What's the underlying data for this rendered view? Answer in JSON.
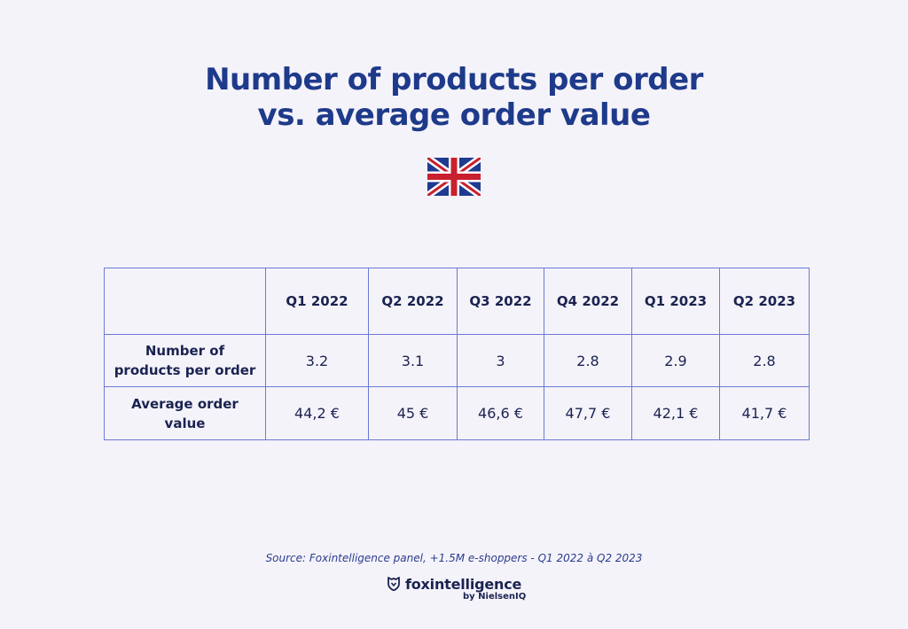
{
  "title": {
    "line1": "Number of products per order",
    "line2": "vs. average order value"
  },
  "flag": {
    "icon": "uk-flag-icon",
    "colors": {
      "blue": "#1f3b8f",
      "red": "#c8202f",
      "white": "#ffffff"
    }
  },
  "chart_data": {
    "type": "table",
    "columns": [
      "",
      "Q1 2022",
      "Q2 2022",
      "Q3 2022",
      "Q4 2022",
      "Q1 2023",
      "Q2 2023"
    ],
    "rows": [
      {
        "label": "Number of products per order",
        "values": [
          "3.2",
          "3.1",
          "3",
          "2.8",
          "2.9",
          "2.8"
        ]
      },
      {
        "label": "Average order value",
        "values": [
          "44,2 €",
          "45 €",
          "46,6 €",
          "47,7 €",
          "42,1 €",
          "41,7 €"
        ]
      }
    ]
  },
  "footer": {
    "source": "Source: Foxintelligence panel, +1.5M e-shoppers - Q1 2022 à Q2 2023",
    "brand": "foxintelligence",
    "brand_sub": "by NielsenIQ",
    "brand_icon": "fox-shield-icon"
  },
  "colors": {
    "background": "#f5f3fa",
    "title": "#1e3a8a",
    "table_border": "#6b7ad6",
    "text": "#1a2350"
  }
}
